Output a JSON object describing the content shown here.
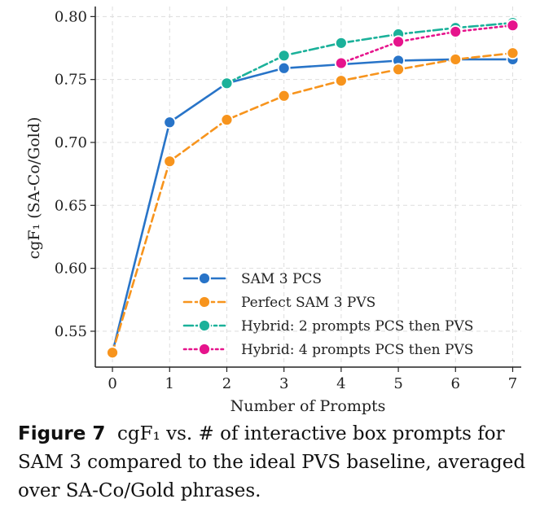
{
  "chart_data": {
    "type": "line",
    "xlabel": "Number of Prompts",
    "ylabel": "cgF₁ (SA-Co/Gold)",
    "x": [
      0,
      1,
      2,
      3,
      4,
      5,
      6,
      7
    ],
    "x_ticks": [
      "0",
      "1",
      "2",
      "3",
      "4",
      "5",
      "6",
      "7"
    ],
    "xlim": [
      -0.3,
      7.15
    ],
    "ylim": [
      0.5215,
      0.808
    ],
    "y_ticks": [
      "0.55",
      "0.60",
      "0.65",
      "0.70",
      "0.75",
      "0.80"
    ],
    "grid": true,
    "legend_position": "bottom-right",
    "series": [
      {
        "name": "SAM 3 PCS",
        "color": "#2874c8",
        "style": "solid",
        "x": [
          0,
          1,
          2,
          3,
          4,
          5,
          6,
          7
        ],
        "values": [
          0.533,
          0.716,
          0.747,
          0.759,
          0.762,
          0.765,
          0.766,
          0.766
        ]
      },
      {
        "name": "Perfect SAM 3 PVS",
        "color": "#f7941d",
        "style": "dashed",
        "x": [
          0,
          1,
          2,
          3,
          4,
          5,
          6,
          7
        ],
        "values": [
          0.533,
          0.685,
          0.718,
          0.737,
          0.749,
          0.758,
          0.766,
          0.771
        ]
      },
      {
        "name": "Hybrid: 2 prompts PCS then PVS",
        "color": "#1bb19a",
        "style": "dashdot",
        "x": [
          2,
          3,
          4,
          5,
          6,
          7
        ],
        "values": [
          0.747,
          0.769,
          0.779,
          0.786,
          0.791,
          0.795
        ]
      },
      {
        "name": "Hybrid: 4 prompts PCS then PVS",
        "color": "#e6148c",
        "style": "dotted",
        "x": [
          4,
          5,
          6,
          7
        ],
        "values": [
          0.763,
          0.78,
          0.788,
          0.793
        ]
      }
    ]
  },
  "caption": {
    "label": "Figure 7",
    "text": "cgF₁ vs. # of interactive box prompts for SAM 3 compared to the ideal PVS baseline, averaged over SA-Co/Gold phrases."
  }
}
